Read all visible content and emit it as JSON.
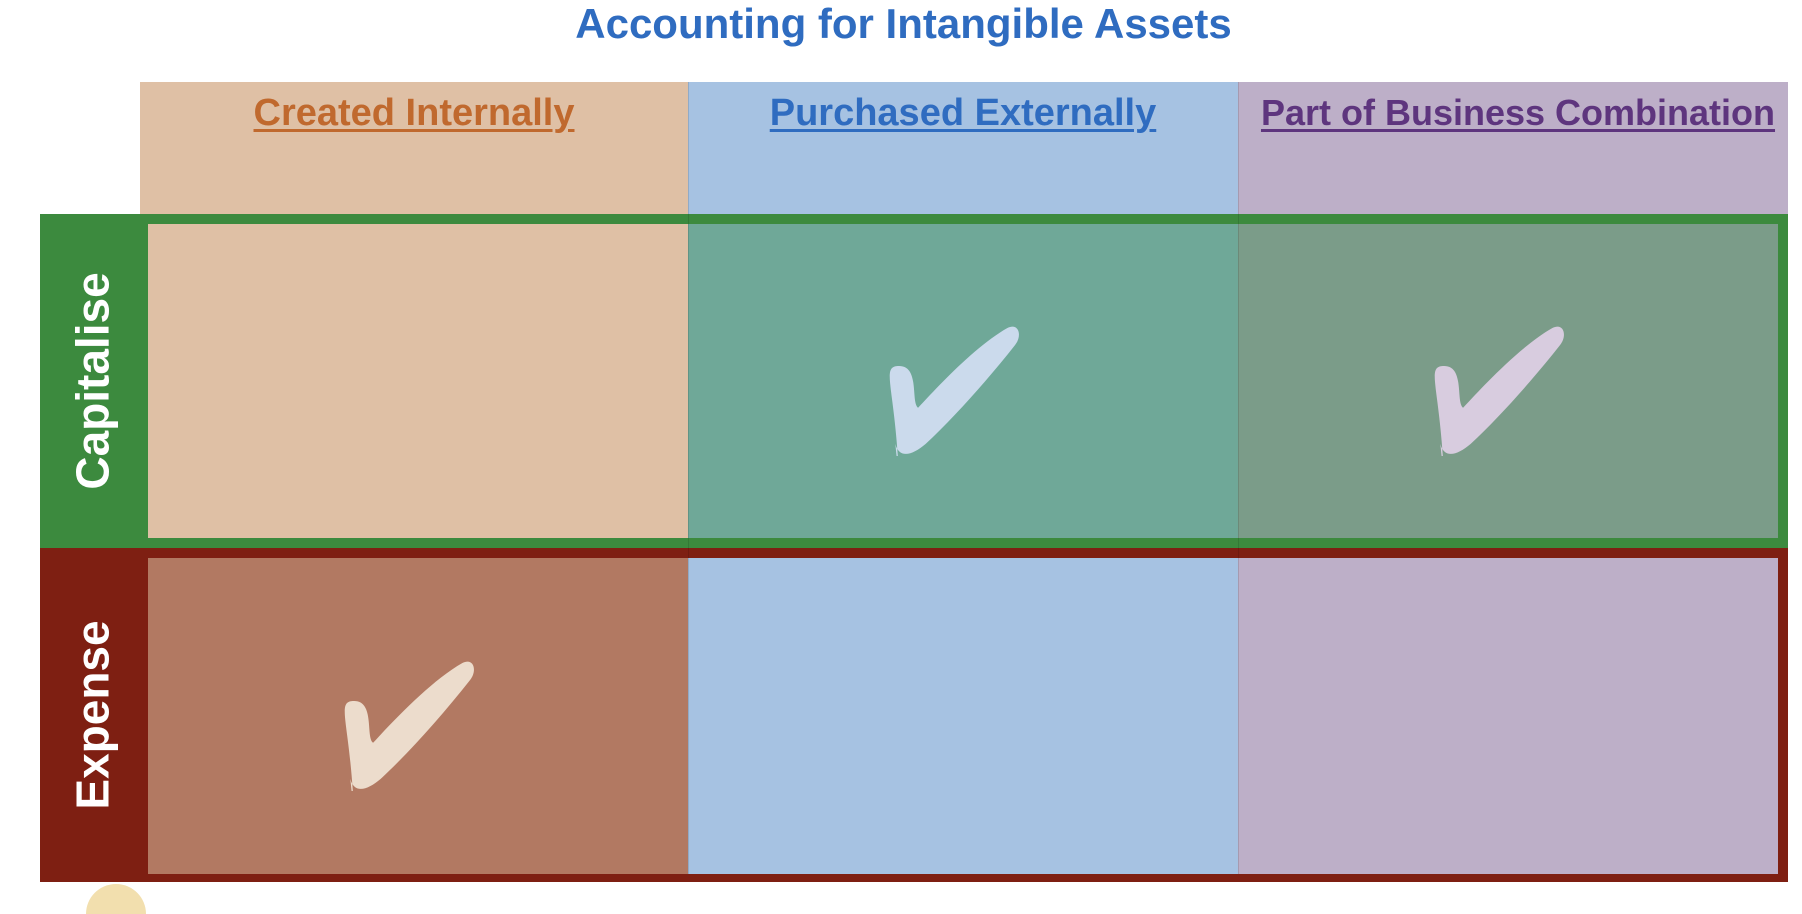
{
  "title": "Accounting for Intangible Assets",
  "colors": {
    "title": "#2f6cc0",
    "created_header_text": "#c0692e",
    "purchased_header_text": "#2f6cc0",
    "combination_header_text": "#5e357e",
    "created_fill": "#dfc0a5",
    "purchased_fill": "#a6c2e2",
    "combination_fill": "#bdafc8",
    "capitalise_band": "#3c8a3e",
    "expense_band": "#7e1f12",
    "check_created": "#ecdccc",
    "check_purchased": "#cbdaec",
    "check_combination": "#d8ccdf"
  },
  "columns": [
    {
      "label": "Created Internally"
    },
    {
      "label": "Purchased Externally"
    },
    {
      "label": "Part of Business Combination"
    }
  ],
  "rows": [
    {
      "label": "Capitalise",
      "checks": [
        false,
        true,
        true
      ]
    },
    {
      "label": "Expense",
      "checks": [
        true,
        false,
        false
      ]
    }
  ],
  "cell_fills": {
    "capitalise": [
      "#dfc0a5",
      "#6fa898",
      "#7b9c89"
    ],
    "expense": [
      "#b27962",
      "#a6c2e2",
      "#bdafc8"
    ]
  },
  "icons": {
    "check": "check-mark-icon"
  }
}
